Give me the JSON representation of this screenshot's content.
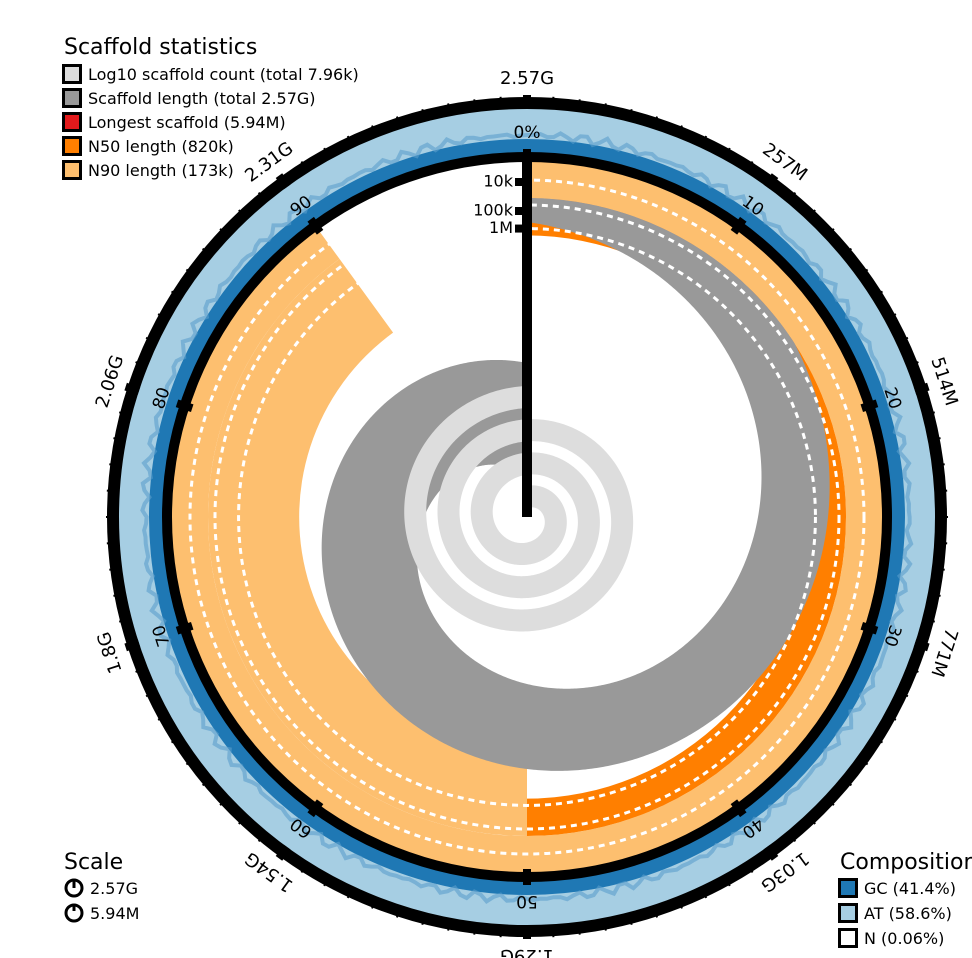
{
  "chart_data": {
    "type": "snail",
    "legend_scaffold": {
      "title": "Scaffold statistics",
      "items": [
        {
          "label": "Log10 scaffold count (total 7.96k)",
          "color": "#dddddd"
        },
        {
          "label": "Scaffold length (total 2.57G)",
          "color": "#999999"
        },
        {
          "label": "Longest scaffold (5.94M)",
          "color": "#e31a1c"
        },
        {
          "label": "N50 length (820k)",
          "color": "#ff7f00"
        },
        {
          "label": "N90 length (173k)",
          "color": "#fdbf6f"
        }
      ]
    },
    "legend_scale": {
      "title": "Scale",
      "items": [
        {
          "label": "2.57G",
          "kind": "full"
        },
        {
          "label": "5.94M",
          "kind": "longest"
        }
      ]
    },
    "legend_composition": {
      "title": "Composition",
      "items": [
        {
          "label": "GC (41.4%)",
          "color": "#1f78b4"
        },
        {
          "label": "AT (58.6%)",
          "color": "#a6cee3"
        },
        {
          "label": "N (0.06%)",
          "color": "#ffffff"
        }
      ]
    },
    "outer_ticks": [
      "2.57G",
      "257M",
      "514M",
      "771M",
      "1.03G",
      "1.29G",
      "1.54G",
      "1.8G",
      "2.06G",
      "2.31G"
    ],
    "percent_ticks": [
      "0%",
      "10",
      "20",
      "30",
      "40",
      "50",
      "60",
      "70",
      "80",
      "90"
    ],
    "radial_ticks": [
      "10k",
      "100k",
      "1M"
    ],
    "total_length": 2570000000,
    "longest_scaffold": 5940000,
    "n50": 820000,
    "n90": 173000,
    "n50_percent": 50,
    "n90_percent": 90,
    "gc_percent": 41.4,
    "at_percent": 58.6,
    "n_percent": 0.06,
    "colors": {
      "count": "#dddddd",
      "length": "#999999",
      "longest": "#e31a1c",
      "n50": "#ff7f00",
      "n90": "#fdbf6f",
      "gc": "#1f78b4",
      "at": "#a6cee3",
      "axis": "#000000"
    }
  }
}
